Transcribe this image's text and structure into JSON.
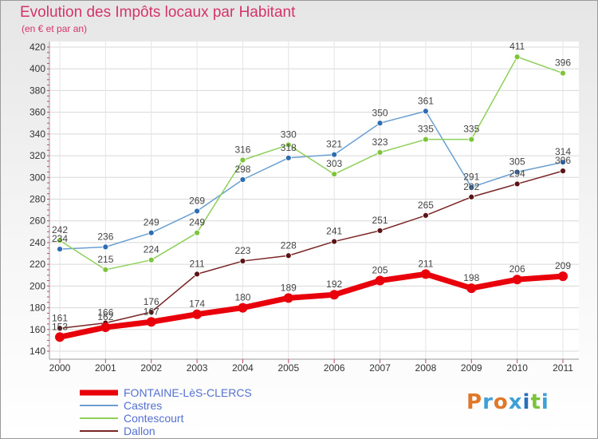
{
  "chart_data": {
    "type": "line",
    "title": "Evolution des Impôts locaux par Habitant",
    "subtitle": "(en € et par an)",
    "categories": [
      "2000",
      "2001",
      "2002",
      "2003",
      "2004",
      "2005",
      "2006",
      "2007",
      "2008",
      "2009",
      "2010",
      "2011"
    ],
    "ylim": [
      140,
      420
    ],
    "yticks": [
      140,
      160,
      180,
      200,
      220,
      240,
      260,
      280,
      300,
      320,
      340,
      360,
      380,
      400,
      420
    ],
    "series": [
      {
        "name": "FONTAINE-LèS-CLERCS",
        "color": "#e8000b",
        "dot": "#e8000b",
        "width": 7,
        "radius": 6,
        "values": [
          153,
          162,
          167,
          174,
          180,
          189,
          192,
          205,
          211,
          198,
          206,
          209
        ]
      },
      {
        "name": "Castres",
        "color": "#6a9fd2",
        "dot": "#2f6db0",
        "width": 1.5,
        "radius": 3.5,
        "values": [
          234,
          236,
          249,
          269,
          298,
          318,
          321,
          350,
          361,
          291,
          305,
          314
        ]
      },
      {
        "name": "Contescourt",
        "color": "#8ed05a",
        "dot": "#7cc43a",
        "width": 1.5,
        "radius": 3.5,
        "values": [
          242,
          215,
          224,
          249,
          316,
          330,
          303,
          323,
          335,
          335,
          411,
          396
        ]
      },
      {
        "name": "Dallon",
        "color": "#7a2525",
        "dot": "#5a1414",
        "width": 1.5,
        "radius": 3.5,
        "values": [
          161,
          166,
          176,
          211,
          223,
          228,
          241,
          251,
          265,
          282,
          294,
          306
        ]
      }
    ]
  },
  "logo": {
    "text": "Proxiti",
    "colors": [
      "#e0782a",
      "#3fa0d8",
      "#e0782a",
      "#3fa0d8",
      "#2b6fb8",
      "#7cc43a",
      "#3fa0d8"
    ]
  }
}
